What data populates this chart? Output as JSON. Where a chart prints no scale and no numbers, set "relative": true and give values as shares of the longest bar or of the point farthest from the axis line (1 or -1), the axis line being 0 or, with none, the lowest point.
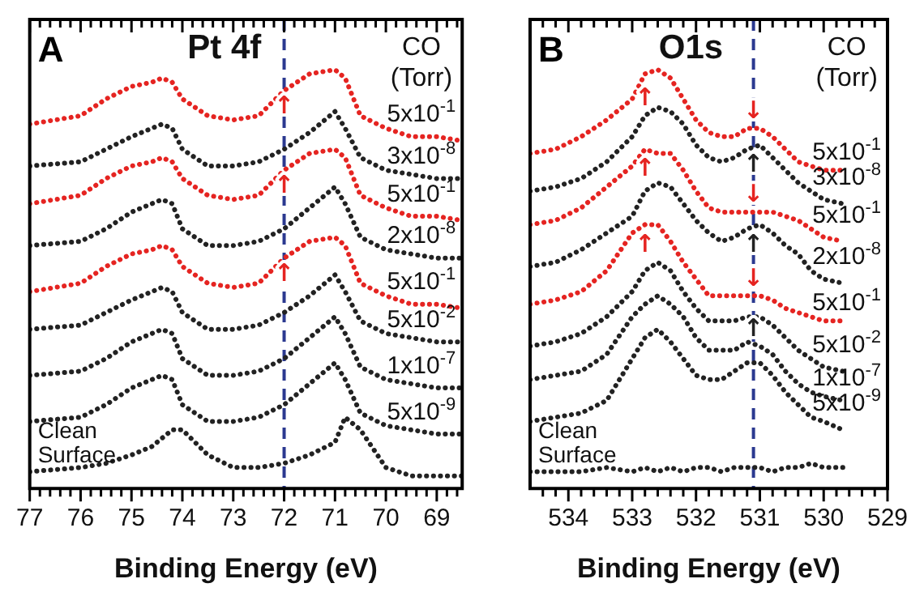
{
  "chart_data": [
    {
      "type": "line",
      "relative": true,
      "title": "Pt 4f",
      "xlabel": "Binding Energy (eV)",
      "legend_title": "CO (Torr)",
      "line_style": "dotted",
      "annotations": [
        "A",
        {
          "text": "↑",
          "x": 72,
          "y": 0.94
        },
        {
          "text": "↑",
          "x": 72,
          "y": 0.75
        },
        {
          "text": "↑",
          "x": 72,
          "y": 0.54
        }
      ],
      "xlim": [
        77,
        68.5
      ],
      "xticks": [
        77,
        {
          "value": 76.8,
          "label": null
        },
        {
          "value": 76.6,
          "label": null
        },
        {
          "value": 76.4,
          "label": null
        },
        {
          "value": 76.2,
          "label": null
        },
        76,
        {
          "value": 75.8,
          "label": null
        },
        {
          "value": 75.6,
          "label": null
        },
        {
          "value": 75.4,
          "label": null
        },
        {
          "value": 75.2,
          "label": null
        },
        75,
        {
          "value": 74.8,
          "label": null
        },
        {
          "value": 74.6,
          "label": null
        },
        {
          "value": 74.4,
          "label": null
        },
        {
          "value": 74.2,
          "label": null
        },
        74,
        {
          "value": 73.8,
          "label": null
        },
        {
          "value": 73.6,
          "label": null
        },
        {
          "value": 73.4,
          "label": null
        },
        {
          "value": 73.2,
          "label": null
        },
        73,
        {
          "value": 72.8,
          "label": null
        },
        {
          "value": 72.6,
          "label": null
        },
        {
          "value": 72.4,
          "label": null
        },
        {
          "value": 72.2,
          "label": null
        },
        72,
        {
          "value": 71.8,
          "label": null
        },
        {
          "value": 71.6,
          "label": null
        },
        {
          "value": 71.4,
          "label": null
        },
        {
          "value": 71.2,
          "label": null
        },
        71,
        {
          "value": 70.8,
          "label": null
        },
        {
          "value": 70.6,
          "label": null
        },
        {
          "value": 70.4,
          "label": null
        },
        {
          "value": 70.2,
          "label": null
        },
        70,
        {
          "value": 69.8,
          "label": null
        },
        {
          "value": 69.6,
          "label": null
        },
        {
          "value": 69.4,
          "label": null
        },
        {
          "value": 69.2,
          "label": null
        },
        69,
        {
          "value": 68.8,
          "label": null
        },
        {
          "value": 68.6,
          "label": null
        }
      ],
      "ref_lines": [
        {
          "axis": "x",
          "value": 72,
          "color": "#2b3990",
          "line_style": "dashed"
        }
      ],
      "x": [
        77,
        76,
        75.5,
        75,
        74.6,
        74.4,
        74.2,
        74,
        73.5,
        73,
        72.5,
        72,
        71.5,
        71,
        70.8,
        70.5,
        70,
        69.5,
        69,
        68.5
      ],
      "series": [
        {
          "name": "5x10$^{-1}$",
          "color": "#e52421",
          "values": [
            0.87,
            0.89,
            0.93,
            0.96,
            0.97,
            0.98,
            0.97,
            0.93,
            0.89,
            0.88,
            0.89,
            0.95,
            0.99,
            1,
            0.98,
            0.89,
            0.86,
            0.84,
            0.84,
            0.83
          ]
        },
        {
          "name": "3x10$^{-8}$",
          "color": "#222222",
          "values": [
            0.77,
            0.78,
            0.81,
            0.84,
            0.86,
            0.87,
            0.86,
            0.81,
            0.77,
            0.77,
            0.78,
            0.81,
            0.85,
            0.9,
            0.86,
            0.79,
            0.76,
            0.75,
            0.74,
            0.74
          ]
        },
        {
          "name": "5x10$^{-1}$",
          "color": "#e52421",
          "values": [
            0.68,
            0.7,
            0.74,
            0.77,
            0.78,
            0.79,
            0.78,
            0.74,
            0.7,
            0.69,
            0.7,
            0.76,
            0.8,
            0.81,
            0.79,
            0.7,
            0.67,
            0.65,
            0.65,
            0.64
          ]
        },
        {
          "name": "2x10$^{-8}$",
          "color": "#222222",
          "values": [
            0.58,
            0.59,
            0.62,
            0.66,
            0.68,
            0.69,
            0.68,
            0.62,
            0.58,
            0.58,
            0.59,
            0.62,
            0.67,
            0.72,
            0.68,
            0.6,
            0.57,
            0.56,
            0.55,
            0.55
          ]
        },
        {
          "name": "5x10$^{-1}$",
          "color": "#e52421",
          "values": [
            0.47,
            0.49,
            0.53,
            0.56,
            0.57,
            0.58,
            0.57,
            0.53,
            0.49,
            0.48,
            0.49,
            0.55,
            0.59,
            0.6,
            0.58,
            0.49,
            0.46,
            0.44,
            0.44,
            0.43
          ]
        },
        {
          "name": "5x10$^{-2}$",
          "color": "#222222",
          "values": [
            0.38,
            0.39,
            0.42,
            0.45,
            0.47,
            0.48,
            0.47,
            0.42,
            0.38,
            0.38,
            0.39,
            0.42,
            0.46,
            0.51,
            0.47,
            0.4,
            0.37,
            0.36,
            0.35,
            0.35
          ]
        },
        {
          "name": "1x10$^{-7}$",
          "color": "#222222",
          "values": [
            0.27,
            0.28,
            0.31,
            0.35,
            0.37,
            0.38,
            0.37,
            0.31,
            0.27,
            0.27,
            0.28,
            0.31,
            0.36,
            0.41,
            0.37,
            0.29,
            0.26,
            0.25,
            0.24,
            0.24
          ]
        },
        {
          "name": "5x10$^{-9}$",
          "color": "#222222",
          "values": [
            0.16,
            0.17,
            0.2,
            0.24,
            0.26,
            0.27,
            0.26,
            0.2,
            0.16,
            0.16,
            0.17,
            0.2,
            0.25,
            0.3,
            0.26,
            0.18,
            0.15,
            0.14,
            0.13,
            0.13
          ]
        },
        {
          "name": "Clean Surface",
          "color": "#222222",
          "values": [
            0.04,
            0.05,
            0.06,
            0.08,
            0.1,
            0.12,
            0.14,
            0.14,
            0.08,
            0.05,
            0.05,
            0.06,
            0.08,
            0.11,
            0.17,
            0.14,
            0.05,
            0.03,
            0.03,
            0.03
          ]
        }
      ]
    },
    {
      "type": "line",
      "relative": true,
      "title": "O1s",
      "xlabel": "Binding Energy (eV)",
      "legend_title": "CO (Torr)",
      "line_style": "dotted",
      "annotations": [
        "B",
        {
          "text": "↑",
          "x": 532.8,
          "y": 0.96
        },
        {
          "text": "↑",
          "x": 532.8,
          "y": 0.79
        },
        {
          "text": "↑",
          "x": 532.8,
          "y": 0.61
        },
        {
          "text": "↓",
          "x": 531.1,
          "y": 0.87
        },
        {
          "text": "↓",
          "x": 531.1,
          "y": 0.67
        },
        {
          "text": "↓",
          "x": 531.1,
          "y": 0.47
        },
        {
          "text": "↑",
          "x": 531.1,
          "y": 0.8
        },
        {
          "text": "↑",
          "x": 531.1,
          "y": 0.61
        },
        {
          "text": "↑",
          "x": 531.1,
          "y": 0.35
        }
      ],
      "xlim": [
        534.6,
        529
      ],
      "xticks": [
        {
          "value": 534.4,
          "label": null
        },
        {
          "value": 534.2,
          "label": null
        },
        534,
        {
          "value": 533.8,
          "label": null
        },
        {
          "value": 533.6,
          "label": null
        },
        {
          "value": 533.4,
          "label": null
        },
        {
          "value": 533.2,
          "label": null
        },
        533,
        {
          "value": 532.8,
          "label": null
        },
        {
          "value": 532.6,
          "label": null
        },
        {
          "value": 532.4,
          "label": null
        },
        {
          "value": 532.2,
          "label": null
        },
        532,
        {
          "value": 531.8,
          "label": null
        },
        {
          "value": 531.6,
          "label": null
        },
        {
          "value": 531.4,
          "label": null
        },
        {
          "value": 531.2,
          "label": null
        },
        531,
        {
          "value": 530.8,
          "label": null
        },
        {
          "value": 530.6,
          "label": null
        },
        {
          "value": 530.4,
          "label": null
        },
        {
          "value": 530.2,
          "label": null
        },
        530,
        {
          "value": 529.8,
          "label": null
        },
        {
          "value": 529.6,
          "label": null
        },
        {
          "value": 529.4,
          "label": null
        },
        {
          "value": 529.2,
          "label": null
        },
        529
      ],
      "ref_lines": [
        {
          "axis": "x",
          "value": 531.1,
          "color": "#2b3990",
          "line_style": "dashed"
        }
      ],
      "x": [
        534.6,
        534.2,
        533.8,
        533.4,
        533,
        532.8,
        532.6,
        532.4,
        532.2,
        532,
        531.8,
        531.6,
        531.4,
        531.2,
        531,
        530.8,
        530.6,
        530.4,
        530.2,
        530,
        529.7
      ],
      "series": [
        {
          "name": "5x10$^{-1}$",
          "color": "#e52421",
          "values": [
            0.8,
            0.81,
            0.84,
            0.88,
            0.93,
            0.99,
            1,
            0.98,
            0.93,
            0.88,
            0.85,
            0.84,
            0.84,
            0.86,
            0.86,
            0.84,
            0.81,
            0.78,
            0.77,
            0.76,
            0.76
          ]
        },
        {
          "name": "3x10$^{-8}$",
          "color": "#222222",
          "values": [
            0.71,
            0.72,
            0.74,
            0.78,
            0.84,
            0.89,
            0.91,
            0.9,
            0.87,
            0.82,
            0.79,
            0.78,
            0.79,
            0.81,
            0.82,
            0.79,
            0.76,
            0.73,
            0.71,
            0.69,
            0.68
          ]
        },
        {
          "name": "5x10$^{-1}$",
          "color": "#e52421",
          "values": [
            0.63,
            0.64,
            0.67,
            0.72,
            0.77,
            0.81,
            0.8,
            0.8,
            0.76,
            0.71,
            0.67,
            0.66,
            0.66,
            0.66,
            0.66,
            0.66,
            0.65,
            0.64,
            0.62,
            0.6,
            0.59
          ]
        },
        {
          "name": "2x10$^{-8}$",
          "color": "#222222",
          "values": [
            0.53,
            0.54,
            0.57,
            0.61,
            0.65,
            0.71,
            0.73,
            0.72,
            0.68,
            0.64,
            0.61,
            0.59,
            0.6,
            0.62,
            0.63,
            0.61,
            0.58,
            0.56,
            0.52,
            0.5,
            0.49
          ]
        },
        {
          "name": "5x10$^{-1}$",
          "color": "#e52421",
          "values": [
            0.44,
            0.45,
            0.47,
            0.52,
            0.61,
            0.63,
            0.63,
            0.59,
            0.54,
            0.5,
            0.46,
            0.46,
            0.46,
            0.46,
            0.46,
            0.45,
            0.43,
            0.42,
            0.41,
            0.4,
            0.4
          ]
        },
        {
          "name": "5x10$^{-2}$",
          "color": "#222222",
          "values": [
            0.34,
            0.35,
            0.37,
            0.41,
            0.47,
            0.52,
            0.54,
            0.52,
            0.47,
            0.43,
            0.4,
            0.4,
            0.4,
            0.41,
            0.41,
            0.39,
            0.36,
            0.33,
            0.31,
            0.29,
            0.28
          ]
        },
        {
          "name": "1x10$^{-7}$",
          "color": "#222222",
          "values": [
            0.26,
            0.27,
            0.28,
            0.32,
            0.41,
            0.44,
            0.46,
            0.44,
            0.41,
            0.36,
            0.33,
            0.33,
            0.33,
            0.35,
            0.34,
            0.32,
            0.28,
            0.25,
            0.23,
            0.22,
            0.21
          ]
        },
        {
          "name": "5x10$^{-9}$",
          "color": "#222222",
          "values": [
            0.16,
            0.17,
            0.18,
            0.21,
            0.31,
            0.36,
            0.38,
            0.35,
            0.31,
            0.27,
            0.26,
            0.26,
            0.28,
            0.3,
            0.3,
            0.27,
            0.23,
            0.2,
            0.17,
            0.16,
            0.14
          ]
        },
        {
          "name": "Clean Surface",
          "color": "#222222",
          "values": [
            0.04,
            0.04,
            0.04,
            0.05,
            0.04,
            0.05,
            0.04,
            0.05,
            0.04,
            0.05,
            0.05,
            0.04,
            0.05,
            0.05,
            0.05,
            0.04,
            0.05,
            0.05,
            0.06,
            0.05,
            0.05
          ]
        }
      ]
    }
  ]
}
